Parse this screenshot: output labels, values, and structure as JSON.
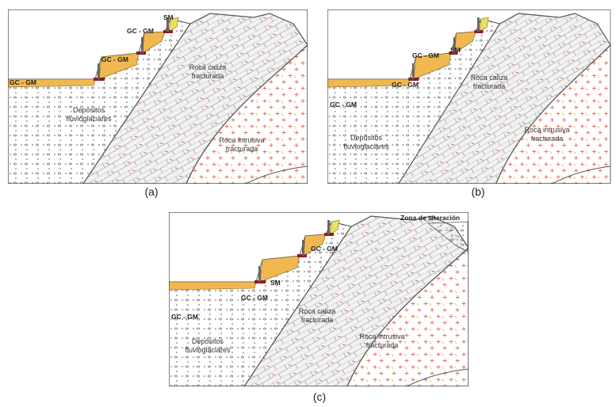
{
  "panels": [
    {
      "caption": "(a)",
      "labels": [
        "SM",
        "GC - GM",
        "GC - GM",
        "GC - GM"
      ],
      "units": [
        [
          "Roca caliza",
          "fracturada"
        ],
        [
          "Depósitos",
          "fluvioglaciares"
        ],
        [
          "Roca intrusiva",
          "fracturada"
        ]
      ]
    },
    {
      "caption": "(b)",
      "labels": [
        "SM",
        "GC - GM",
        "GC - GM",
        "GC - GM"
      ],
      "units": [
        [
          "Roca caliza",
          "fracturada"
        ],
        [
          "Depósitos",
          "fluvioglaciares"
        ],
        [
          "Roca intrusiva",
          "fracturada"
        ]
      ]
    },
    {
      "caption": "(c)",
      "labels": [
        "Zona de alteración",
        "GC - GM",
        "SM",
        "GC - GM",
        "GC - GM"
      ],
      "units": [
        [
          "Roca caliza",
          "fracturada"
        ],
        [
          "Depósitos",
          "fluvioglaciares"
        ],
        [
          "Roca intrusiva",
          "fracturada"
        ]
      ]
    }
  ]
}
